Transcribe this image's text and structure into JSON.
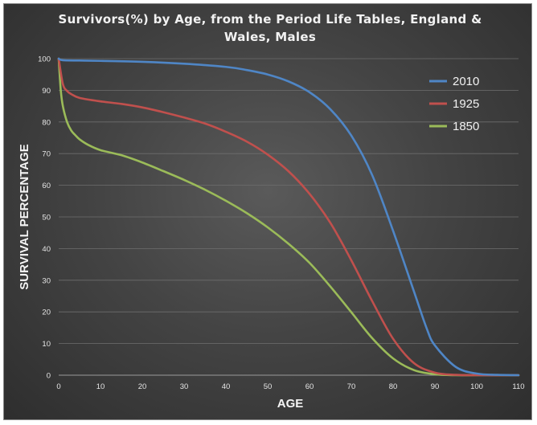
{
  "chart_data": {
    "type": "line",
    "title_lines": [
      "Survivors(%)  by Age, from the Period Life Tables, England  &",
      "Wales, Males"
    ],
    "xlabel": "AGE",
    "ylabel": "SURVIVAL PERCENTAGE",
    "xlim": [
      0,
      110
    ],
    "ylim": [
      0,
      100
    ],
    "xticks": [
      0,
      10,
      20,
      30,
      40,
      50,
      60,
      70,
      80,
      90,
      100,
      110
    ],
    "yticks": [
      0,
      10,
      20,
      30,
      40,
      50,
      60,
      70,
      80,
      90,
      100
    ],
    "grid": true,
    "legend_position": "top-right",
    "series": [
      {
        "name": "2010",
        "color": "#4f86c6",
        "x": [
          0,
          1,
          5,
          10,
          20,
          30,
          40,
          45,
          50,
          55,
          60,
          65,
          70,
          75,
          80,
          85,
          88,
          90,
          95,
          100,
          105,
          110
        ],
        "y": [
          100,
          99.5,
          99.4,
          99.3,
          99.0,
          98.4,
          97.4,
          96.4,
          95.0,
          92.8,
          89.4,
          84.0,
          75.7,
          63.2,
          45.6,
          26.4,
          14.9,
          9.4,
          2.6,
          0.5,
          0.1,
          0.0
        ]
      },
      {
        "name": "1925",
        "color": "#c0504d",
        "x": [
          0,
          1,
          2,
          3,
          5,
          10,
          15,
          20,
          25,
          30,
          35,
          40,
          45,
          50,
          55,
          60,
          65,
          70,
          75,
          80,
          85,
          90,
          95,
          100,
          110
        ],
        "y": [
          100,
          92.0,
          89.8,
          88.8,
          87.6,
          86.5,
          85.7,
          84.6,
          83.1,
          81.4,
          79.5,
          76.9,
          73.8,
          69.7,
          64.4,
          57.3,
          48.1,
          36.3,
          23.4,
          11.5,
          3.8,
          0.8,
          0.1,
          0.0,
          0.0
        ]
      },
      {
        "name": "1850",
        "color": "#9bbb59",
        "x": [
          0,
          0.5,
          1,
          2,
          3,
          4,
          5,
          7,
          10,
          15,
          20,
          25,
          30,
          35,
          40,
          45,
          50,
          55,
          60,
          65,
          70,
          75,
          80,
          85,
          90,
          95,
          100,
          110
        ],
        "y": [
          100,
          90.0,
          85.0,
          80.0,
          77.3,
          75.8,
          74.5,
          72.8,
          71.1,
          69.5,
          67.2,
          64.5,
          61.7,
          58.6,
          55.1,
          51.2,
          46.7,
          41.5,
          35.5,
          28.0,
          19.9,
          11.7,
          5.3,
          1.6,
          0.3,
          0.0,
          0.0,
          0.0
        ]
      }
    ]
  }
}
